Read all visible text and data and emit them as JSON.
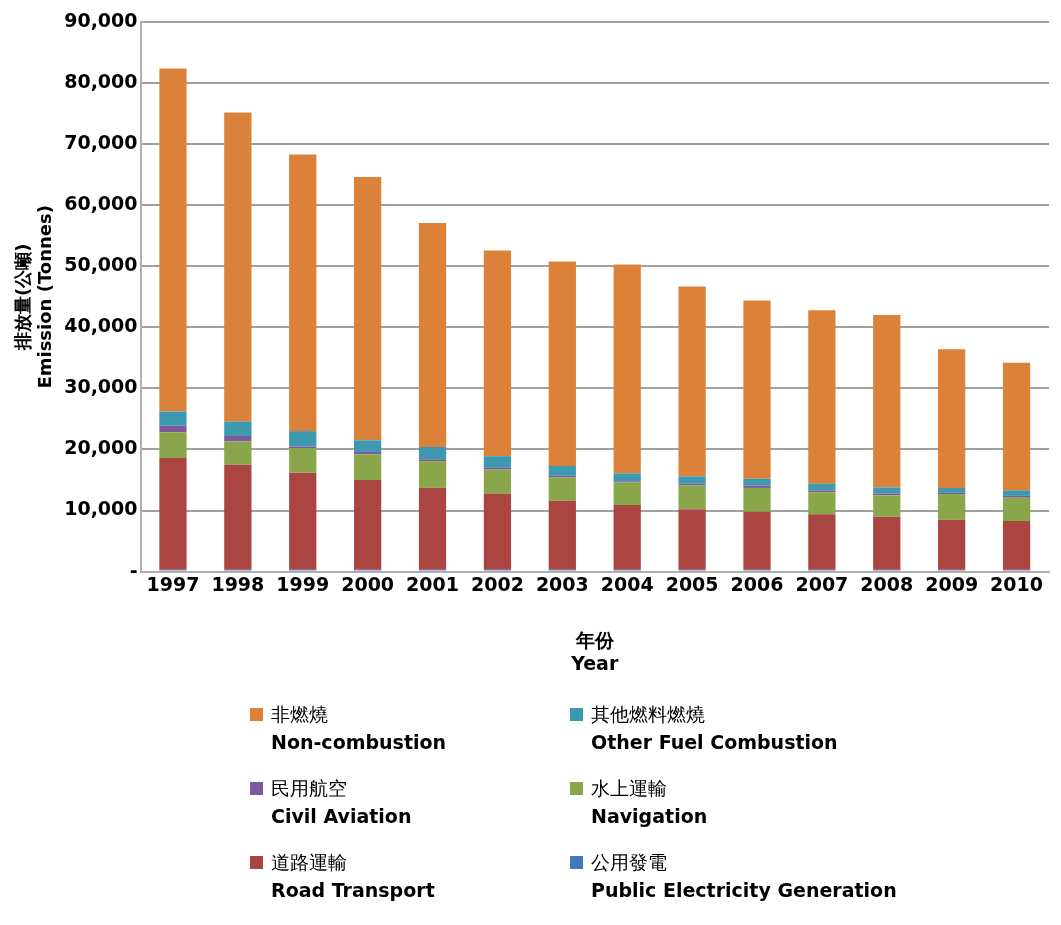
{
  "chart_data": {
    "type": "bar",
    "stacked": true,
    "xlabel": "年份\nYear",
    "ylabel": "排放量(公噸)\nEmission (Tonnes)",
    "categories": [
      "1997",
      "1998",
      "1999",
      "2000",
      "2001",
      "2002",
      "2003",
      "2004",
      "2005",
      "2006",
      "2007",
      "2008",
      "2009",
      "2010"
    ],
    "series": [
      {
        "name": "公用發電\nPublic Electricity Generation",
        "color": "#4279b8",
        "values": [
          300,
          300,
          300,
          300,
          300,
          300,
          300,
          300,
          300,
          300,
          300,
          300,
          300,
          300
        ]
      },
      {
        "name": "道路運輸\nRoad Transport",
        "color": "#ab4541",
        "values": [
          18300,
          17200,
          15900,
          14700,
          13400,
          12500,
          11300,
          10600,
          9900,
          9500,
          9100,
          8700,
          8200,
          8000
        ]
      },
      {
        "name": "水上運輸\nNavigation",
        "color": "#8aa64b",
        "values": [
          4200,
          3800,
          4000,
          4200,
          4400,
          3900,
          3800,
          3700,
          3900,
          3900,
          3600,
          3500,
          4200,
          3800
        ]
      },
      {
        "name": "民用航空\nCivil Aviation",
        "color": "#7d5b9a",
        "values": [
          1100,
          900,
          300,
          400,
          300,
          300,
          300,
          200,
          300,
          400,
          300,
          300,
          200,
          300
        ]
      },
      {
        "name": "其他燃料燃燒\nOther Fuel Combustion",
        "color": "#3d98b0",
        "values": [
          2300,
          2400,
          2500,
          1900,
          2000,
          1900,
          1600,
          1300,
          1200,
          1100,
          1100,
          1000,
          800,
          900
        ]
      },
      {
        "name": "非燃燒\nNon-combustion",
        "color": "#db8139",
        "values": [
          56200,
          50600,
          45300,
          43100,
          36700,
          33700,
          33500,
          34200,
          31100,
          29200,
          28400,
          28200,
          22700,
          20900
        ]
      }
    ],
    "ylim": [
      0,
      90000
    ],
    "yticks": [
      {
        "value": 0,
        "label": "-"
      },
      {
        "value": 10000,
        "label": "10,000"
      },
      {
        "value": 20000,
        "label": "20,000"
      },
      {
        "value": 30000,
        "label": "30,000"
      },
      {
        "value": 40000,
        "label": "40,000"
      },
      {
        "value": 50000,
        "label": "50,000"
      },
      {
        "value": 60000,
        "label": "60,000"
      },
      {
        "value": 70000,
        "label": "70,000"
      },
      {
        "value": 80000,
        "label": "80,000"
      },
      {
        "value": 90000,
        "label": "90,000"
      }
    ],
    "grid": "y",
    "legend": "bottom"
  }
}
